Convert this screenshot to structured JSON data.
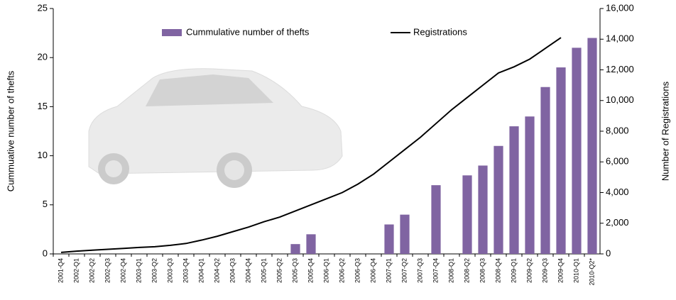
{
  "chart_data": {
    "type": "bar-line",
    "categories": [
      "2001-Q4",
      "2002-Q1",
      "2002-Q2",
      "2002-Q3",
      "2002-Q4",
      "2003-Q1",
      "2003-Q2",
      "2003-Q3",
      "2003-Q4",
      "2004-Q1",
      "2004-Q2",
      "2004-Q3",
      "2004-Q4",
      "2005-Q1",
      "2005-Q2",
      "2005-Q3",
      "2005-Q4",
      "2006-Q1",
      "2006-Q2",
      "2006-Q3",
      "2006-Q4",
      "2007-Q1",
      "2007-Q2",
      "2007-Q3",
      "2007-Q4",
      "2008-Q1",
      "2008-Q2",
      "2008-Q3",
      "2008-Q4",
      "2009-Q1",
      "2009-Q2",
      "2009-Q3",
      "2009-Q4",
      "2010-Q1",
      "2010-Q2*"
    ],
    "series": [
      {
        "name": "Cummulative number of thefts",
        "kind": "bar",
        "color": "#8064a2",
        "values": [
          null,
          null,
          null,
          null,
          null,
          null,
          null,
          null,
          null,
          null,
          null,
          null,
          null,
          null,
          null,
          1,
          2,
          null,
          null,
          null,
          null,
          3,
          4,
          null,
          7,
          null,
          8,
          9,
          11,
          13,
          14,
          17,
          19,
          21,
          22
        ]
      },
      {
        "name": "Registrations",
        "kind": "line",
        "axis": "y2",
        "color": "#000000",
        "values": [
          100,
          180,
          240,
          300,
          360,
          420,
          470,
          560,
          680,
          900,
          1150,
          1450,
          1750,
          2100,
          2400,
          2800,
          3200,
          3600,
          4000,
          4550,
          5200,
          6000,
          6800,
          7600,
          8500,
          9400,
          10200,
          11000,
          11800,
          12200,
          12700,
          13400,
          14100,
          null,
          null
        ]
      }
    ],
    "ylabel": "Cummuative number of thefts",
    "y2label": "Number of Registrations",
    "ylim": [
      0,
      25
    ],
    "yticks": [
      0,
      5,
      10,
      15,
      20,
      25
    ],
    "y2lim": [
      0,
      16000
    ],
    "y2ticks": [
      0,
      {
        "value": 2000,
        "label": "2,000"
      },
      {
        "value": 4000,
        "label": "4,000"
      },
      {
        "value": 6000,
        "label": "6,000"
      },
      {
        "value": 8000,
        "label": "8,000"
      },
      {
        "value": 10000,
        "label": "10,000"
      },
      {
        "value": 12000,
        "label": "12,000"
      },
      {
        "value": 14000,
        "label": "14,000"
      },
      {
        "value": 16000,
        "label": "16,000"
      }
    ]
  }
}
